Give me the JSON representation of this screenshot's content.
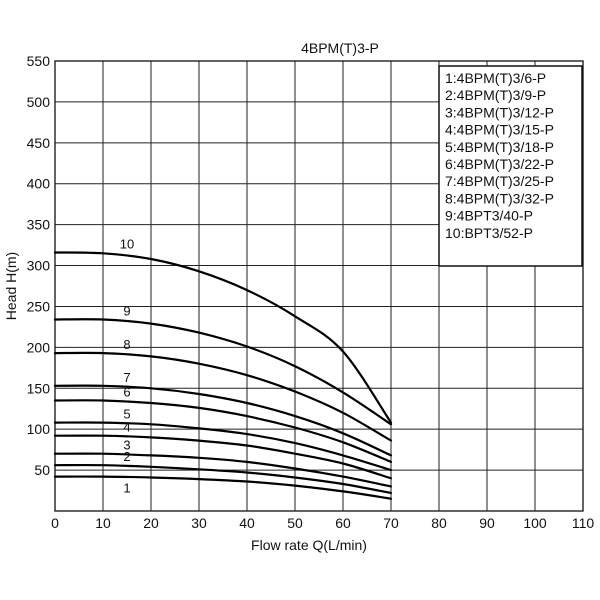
{
  "chart_data": {
    "type": "line",
    "title": "4BPM(T)3-P",
    "xlabel": "Flow rate Q(L/min)",
    "ylabel": "Head H(m)",
    "xlim": [
      0,
      110
    ],
    "ylim": [
      0,
      550
    ],
    "x_ticks": [
      0,
      10,
      20,
      30,
      40,
      50,
      60,
      70,
      80,
      90,
      100,
      110
    ],
    "y_ticks": [
      50,
      100,
      150,
      200,
      250,
      300,
      350,
      400,
      450,
      500,
      550
    ],
    "grid": true,
    "legend_position": "top-right",
    "legend": [
      "1:4BPM(T)3/6-P",
      "2:4BPM(T)3/9-P",
      "3:4BPM(T)3/12-P",
      "4:4BPM(T)3/15-P",
      "5:4BPM(T)3/18-P",
      "6:4BPM(T)3/22-P",
      "7:4BPM(T)3/25-P",
      "8:4BPM(T)3/32-P",
      "9:4BPT3/40-P",
      "10:BPT3/52-P"
    ],
    "x": [
      0,
      10,
      20,
      30,
      40,
      50,
      60,
      70
    ],
    "series": [
      {
        "label": "1",
        "values": [
          42,
          42,
          41,
          39,
          36,
          31,
          24,
          15
        ]
      },
      {
        "label": "2",
        "values": [
          56,
          56,
          54,
          51,
          47,
          41,
          33,
          22
        ]
      },
      {
        "label": "3",
        "values": [
          70,
          70,
          68,
          65,
          60,
          52,
          42,
          30
        ]
      },
      {
        "label": "4",
        "values": [
          92,
          92,
          90,
          86,
          80,
          70,
          58,
          40
        ]
      },
      {
        "label": "5",
        "values": [
          108,
          108,
          106,
          101,
          94,
          83,
          68,
          50
        ]
      },
      {
        "label": "6",
        "values": [
          135,
          135,
          132,
          126,
          116,
          102,
          84,
          60
        ]
      },
      {
        "label": "7",
        "values": [
          153,
          153,
          150,
          143,
          132,
          116,
          95,
          68
        ]
      },
      {
        "label": "8",
        "values": [
          193,
          193,
          189,
          180,
          166,
          146,
          120,
          86
        ]
      },
      {
        "label": "9",
        "values": [
          234,
          234,
          229,
          218,
          201,
          177,
          145,
          106
        ]
      },
      {
        "label": "10",
        "values": [
          316,
          315,
          308,
          293,
          270,
          238,
          195,
          108
        ]
      }
    ]
  }
}
